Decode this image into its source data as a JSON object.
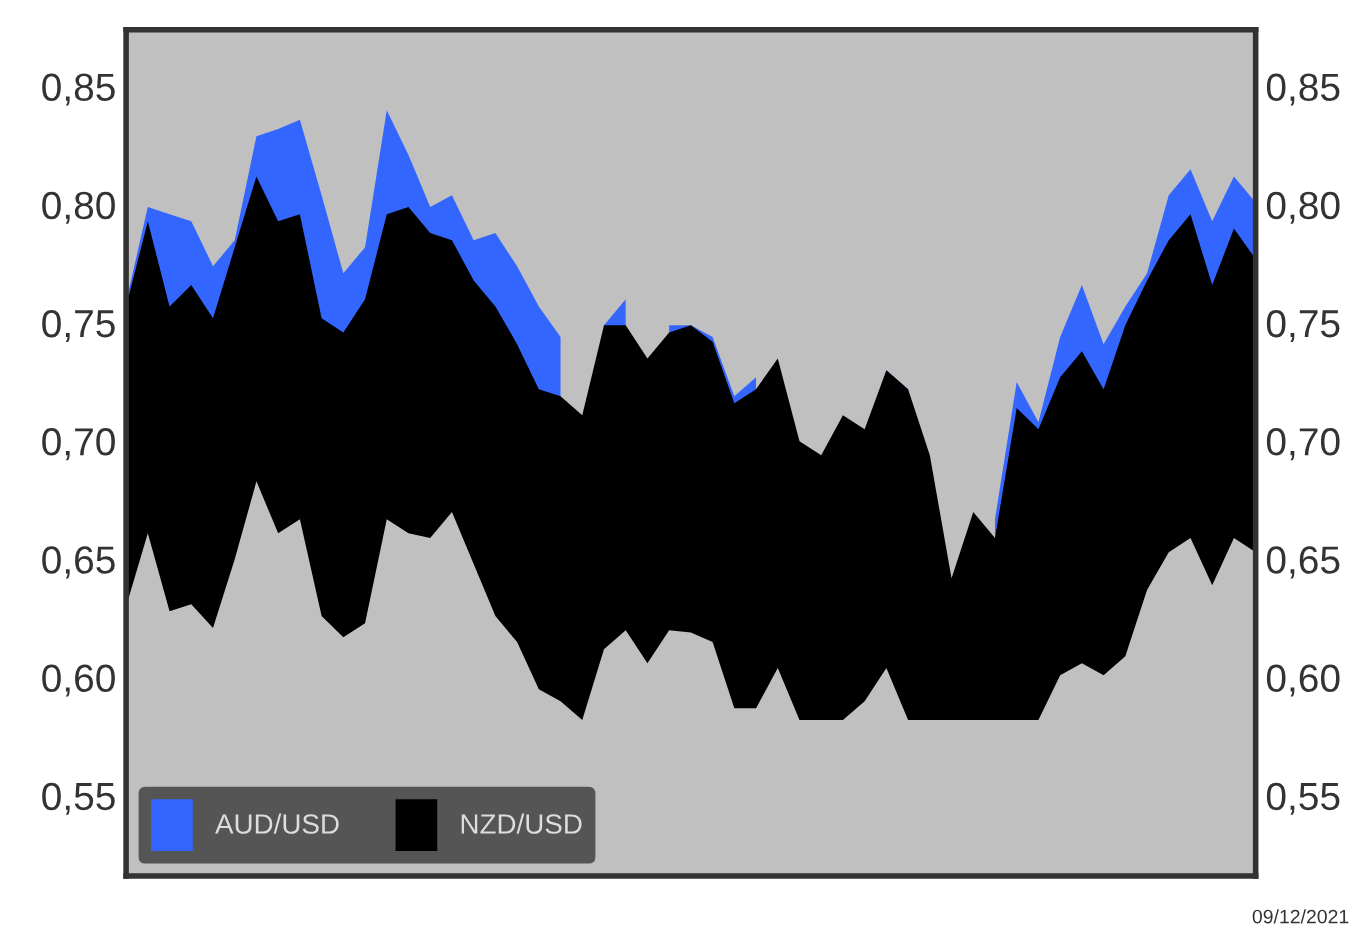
{
  "chart_data": {
    "type": "area",
    "categories": [
      null,
      null,
      null,
      null,
      null,
      null,
      null,
      null,
      null,
      null,
      null,
      null,
      null,
      null,
      null,
      null,
      null,
      null,
      null,
      null,
      null,
      null,
      null,
      null,
      null,
      null,
      null,
      null,
      null,
      null,
      null,
      null,
      null,
      null,
      null,
      null,
      null,
      null,
      null,
      null,
      null,
      null,
      null,
      null,
      null,
      null,
      null,
      null,
      null,
      null,
      null,
      null,
      null
    ],
    "series": [
      {
        "name": "AUD/USD",
        "color": "#3366ff",
        "values": [
          0.759,
          0.799,
          0.796,
          0.793,
          0.774,
          0.785,
          0.829,
          0.832,
          0.836,
          0.804,
          0.771,
          0.782,
          0.84,
          0.821,
          0.799,
          0.804,
          0.785,
          0.788,
          0.774,
          0.757,
          0.744,
          null,
          0.749,
          0.76,
          null,
          0.749,
          0.749,
          0.744,
          0.719,
          0.727,
          null,
          null,
          null,
          null,
          null,
          0.73,
          0.722,
          null,
          null,
          null,
          0.667,
          0.725,
          0.708,
          0.744,
          0.766,
          0.741,
          0.757,
          0.771,
          0.804,
          0.815,
          0.793,
          0.812,
          0.801
        ]
      },
      {
        "name": "NZD/USD",
        "color": "#000000",
        "values": [
          0.757,
          0.793,
          0.757,
          0.766,
          0.752,
          0.782,
          0.812,
          0.793,
          0.796,
          0.752,
          0.746,
          0.76,
          0.796,
          0.799,
          0.788,
          0.785,
          0.768,
          0.757,
          0.741,
          0.722,
          0.719,
          0.711,
          0.749,
          0.749,
          0.735,
          0.746,
          0.749,
          0.742,
          0.716,
          0.722,
          0.735,
          0.7,
          0.694,
          0.711,
          0.705,
          0.73,
          0.722,
          0.694,
          0.642,
          0.67,
          0.659,
          0.714,
          0.705,
          0.727,
          0.738,
          0.722,
          0.749,
          0.768,
          0.785,
          0.796,
          0.766,
          0.79,
          0.777
        ]
      },
      {
        "color": "#c0c0c0",
        "values": [
          0.63,
          0.661,
          0.628,
          0.631,
          0.621,
          0.65,
          0.683,
          0.661,
          0.667,
          0.626,
          0.617,
          0.623,
          0.667,
          0.661,
          0.659,
          0.67,
          0.648,
          0.626,
          0.615,
          0.595,
          0.59,
          0.582,
          0.612,
          0.62,
          0.606,
          0.62,
          0.619,
          0.615,
          0.587,
          0.587,
          0.604,
          0.582,
          0.582,
          0.582,
          0.59,
          0.604,
          0.582,
          0.582,
          0.582,
          0.582,
          0.582,
          0.582,
          0.582,
          0.601,
          0.606,
          0.601,
          0.609,
          0.637,
          0.653,
          0.659,
          0.639,
          0.659,
          0.653
        ]
      }
    ],
    "ylim": [
      0.516,
      0.874
    ],
    "yticks": [
      {
        "value": 0.55,
        "label": "0,55"
      },
      {
        "value": 0.6,
        "label": "0,60"
      },
      {
        "value": 0.65,
        "label": "0,65"
      },
      {
        "value": 0.7,
        "label": "0,70"
      },
      {
        "value": 0.75,
        "label": "0,75"
      },
      {
        "value": 0.8,
        "label": "0,80"
      },
      {
        "value": 0.85,
        "label": "0,85"
      }
    ],
    "y2lim": [
      0.516,
      0.874
    ],
    "y2ticks": [
      {
        "value": 0.55,
        "label": "0,55"
      },
      {
        "value": 0.6,
        "label": "0,60"
      },
      {
        "value": 0.65,
        "label": "0,65"
      },
      {
        "value": 0.7,
        "label": "0,70"
      },
      {
        "value": 0.75,
        "label": "0,75"
      },
      {
        "value": 0.8,
        "label": "0,80"
      },
      {
        "value": 0.85,
        "label": "0,85"
      }
    ],
    "tick_labels": "y",
    "legend": "bottom",
    "annotations": [
      "09/12/2021"
    ]
  }
}
